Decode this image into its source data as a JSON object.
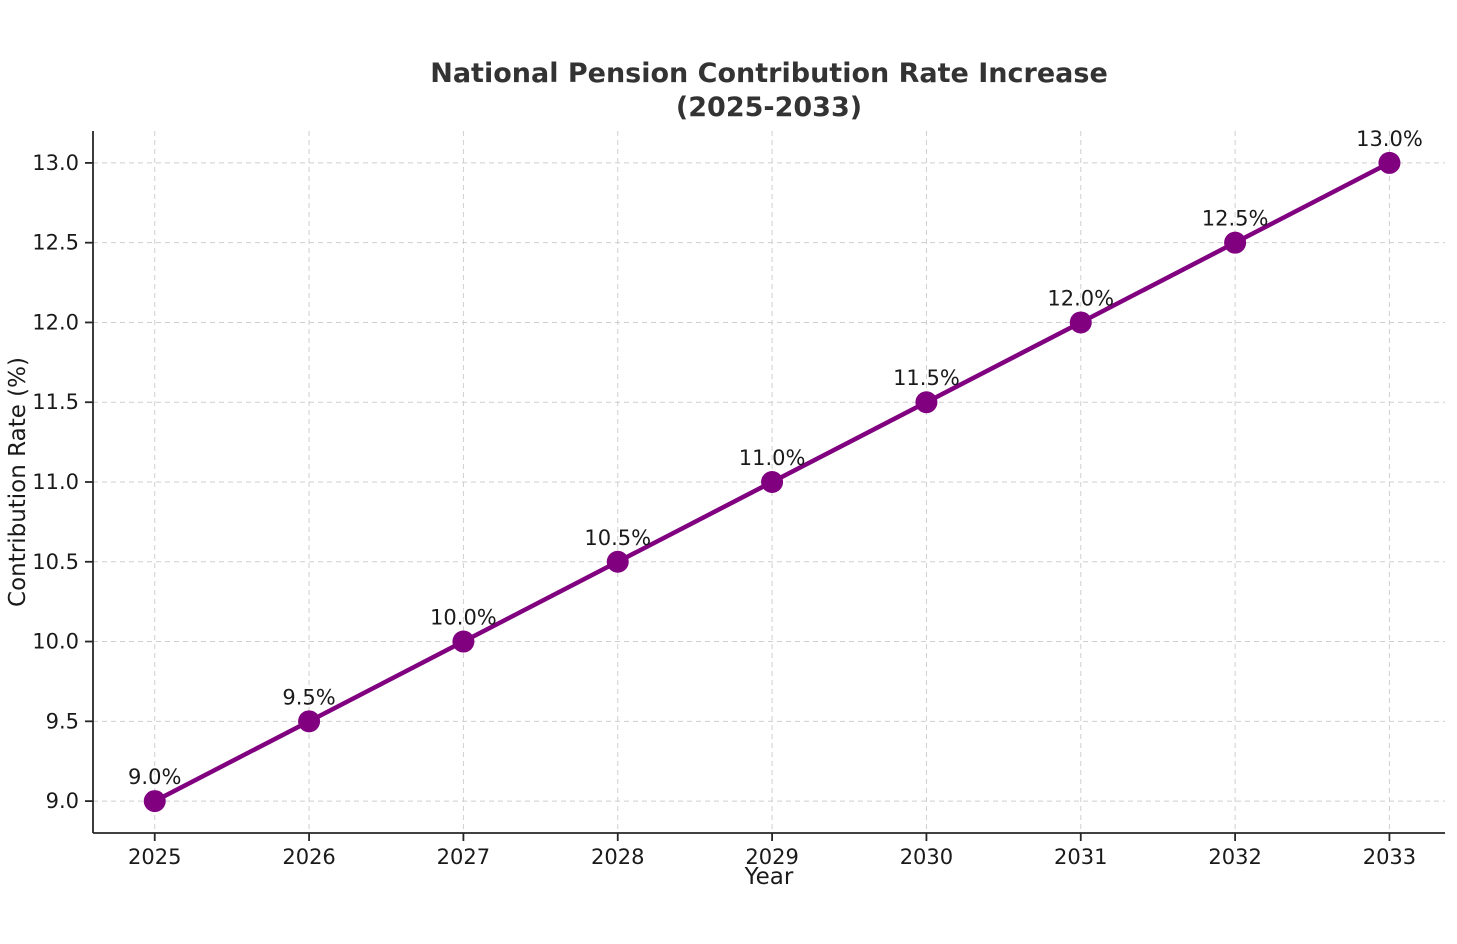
{
  "chart_data": {
    "type": "line",
    "title": "National Pension Contribution Rate Increase",
    "subtitle": "(2025-2033)",
    "xlabel": "Year",
    "ylabel": "Contribution Rate (%)",
    "x": [
      2025,
      2026,
      2027,
      2028,
      2029,
      2030,
      2031,
      2032,
      2033
    ],
    "values": [
      9.0,
      9.5,
      10.0,
      10.5,
      11.0,
      11.5,
      12.0,
      12.5,
      13.0
    ],
    "point_labels": [
      "9.0%",
      "9.5%",
      "10.0%",
      "10.5%",
      "11.0%",
      "11.5%",
      "12.0%",
      "12.5%",
      "13.0%"
    ],
    "xtick_labels": [
      "2025",
      "2026",
      "2027",
      "2028",
      "2029",
      "2030",
      "2031",
      "2032",
      "2033"
    ],
    "yticks": [
      9.0,
      9.5,
      10.0,
      10.5,
      11.0,
      11.5,
      12.0,
      12.5,
      13.0
    ],
    "ytick_labels": [
      "9.0",
      "9.5",
      "10.0",
      "10.5",
      "11.0",
      "11.5",
      "12.0",
      "12.5",
      "13.0"
    ],
    "xlim": [
      2024.6,
      2033.36
    ],
    "ylim": [
      8.8,
      13.2
    ],
    "grid": true,
    "legend": "none",
    "line_color": "#800080",
    "marker": "circle",
    "grid_color": "#cfcfcf",
    "spine_color": "#262626"
  }
}
